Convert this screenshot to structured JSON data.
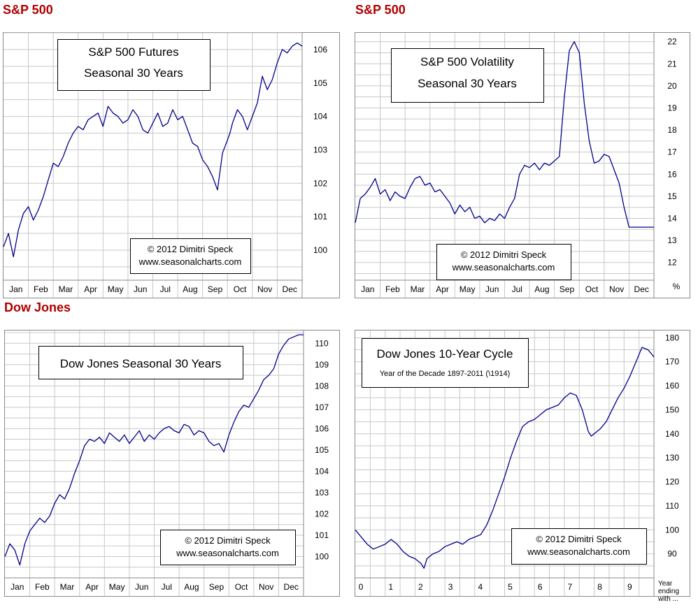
{
  "section_titles": {
    "sp500_left": "S&P 500",
    "sp500_right": "S&P 500",
    "dow": "Dow Jones"
  },
  "colors": {
    "title": "#b00000",
    "line": "#00008b",
    "grid": "#c8c8c8",
    "frame": "#888888"
  },
  "chart_data": [
    {
      "type": "line",
      "title": "S&P 500 Futures",
      "subtitle": "Seasonal 30 Years",
      "credit": [
        "© 2012  Dimitri Speck",
        "www.seasonalcharts.com"
      ],
      "x_tick_labels": [
        "Jan",
        "Feb",
        "Mar",
        "Apr",
        "May",
        "Jun",
        "Jul",
        "Aug",
        "Sep",
        "Oct",
        "Nov",
        "Dec"
      ],
      "y_ticks": [
        100,
        101,
        102,
        103,
        104,
        105,
        106
      ],
      "ylim": [
        99.1,
        106.5
      ],
      "unit_label": "",
      "grid": true,
      "series": [
        {
          "x": [
            0,
            0.2,
            0.4,
            0.6,
            0.8,
            1.0,
            1.2,
            1.4,
            1.6,
            1.8,
            2.0,
            2.2,
            2.4,
            2.6,
            2.8,
            3.0,
            3.2,
            3.4,
            3.6,
            3.8,
            4.0,
            4.2,
            4.4,
            4.6,
            4.8,
            5.0,
            5.2,
            5.4,
            5.6,
            5.8,
            6.0,
            6.2,
            6.4,
            6.6,
            6.8,
            7.0,
            7.2,
            7.4,
            7.6,
            7.8,
            8.0,
            8.2,
            8.4,
            8.6,
            8.8,
            9.0,
            9.1,
            9.2,
            9.3,
            9.4,
            9.5,
            9.6,
            9.8,
            10.0,
            10.2,
            10.4,
            10.6,
            10.8,
            11.0,
            11.2,
            11.4,
            11.6,
            11.8,
            12.0
          ],
          "y": [
            100.1,
            100.5,
            99.8,
            100.6,
            101.1,
            101.3,
            100.9,
            101.2,
            101.6,
            102.1,
            102.6,
            102.5,
            102.8,
            103.2,
            103.5,
            103.7,
            103.6,
            103.9,
            104.0,
            104.1,
            103.7,
            104.3,
            104.1,
            104.0,
            103.8,
            103.9,
            104.2,
            104.0,
            103.6,
            103.5,
            103.8,
            104.1,
            103.7,
            103.8,
            104.2,
            103.9,
            104.0,
            103.6,
            103.2,
            103.1,
            102.7,
            102.5,
            102.2,
            101.8,
            102.9,
            103.3,
            103.5,
            103.8,
            104.0,
            104.2,
            104.1,
            104.0,
            103.6,
            104.0,
            104.4,
            105.2,
            104.8,
            105.1,
            105.6,
            106.0,
            105.9,
            106.1,
            106.2,
            106.1
          ]
        }
      ]
    },
    {
      "type": "line",
      "title": "S&P 500 Volatility",
      "subtitle": "Seasonal 30 Years",
      "credit": [
        "© 2012  Dimitri Speck",
        "www.seasonalcharts.com"
      ],
      "x_tick_labels": [
        "Jan",
        "Feb",
        "Mar",
        "Apr",
        "May",
        "Jun",
        "Jul",
        "Aug",
        "Sep",
        "Oct",
        "Nov",
        "Dec"
      ],
      "y_ticks": [
        12,
        13,
        14,
        15,
        16,
        17,
        18,
        19,
        20,
        21,
        22
      ],
      "ylim": [
        11.2,
        22.4
      ],
      "unit_label": "%",
      "grid": true,
      "series": [
        {
          "x": [
            0,
            0.2,
            0.4,
            0.6,
            0.8,
            1.0,
            1.2,
            1.4,
            1.6,
            1.8,
            2.0,
            2.2,
            2.4,
            2.6,
            2.8,
            3.0,
            3.2,
            3.4,
            3.6,
            3.8,
            4.0,
            4.2,
            4.4,
            4.6,
            4.8,
            5.0,
            5.2,
            5.4,
            5.6,
            5.8,
            6.0,
            6.2,
            6.4,
            6.6,
            6.8,
            7.0,
            7.2,
            7.4,
            7.6,
            7.8,
            8.0,
            8.2,
            8.4,
            8.6,
            8.8,
            9.0,
            9.2,
            9.4,
            9.6,
            9.8,
            10.0,
            10.2,
            10.4,
            10.6,
            10.8,
            11.0,
            11.2,
            11.4,
            11.6,
            11.8,
            12.0
          ],
          "y": [
            13.8,
            14.9,
            15.1,
            15.4,
            15.8,
            15.1,
            15.3,
            14.8,
            15.2,
            15.0,
            14.9,
            15.4,
            15.8,
            15.9,
            15.5,
            15.6,
            15.2,
            15.3,
            15.0,
            14.7,
            14.2,
            14.6,
            14.3,
            14.5,
            14.0,
            14.1,
            13.8,
            14.0,
            13.9,
            14.2,
            14.0,
            14.5,
            14.9,
            16.0,
            16.4,
            16.3,
            16.5,
            16.2,
            16.5,
            16.4,
            16.6,
            16.8,
            19.5,
            21.6,
            22.0,
            21.5,
            19.2,
            17.5,
            16.5,
            16.6,
            16.9,
            16.8,
            16.2,
            15.6,
            14.5,
            13.6,
            13.6,
            13.6,
            13.6,
            13.6,
            13.6
          ]
        }
      ]
    },
    {
      "type": "line",
      "title": "Dow Jones Seasonal 30 Years",
      "subtitle": "",
      "credit": [
        "© 2012  Dimitri Speck",
        "www.seasonalcharts.com"
      ],
      "x_tick_labels": [
        "Jan",
        "Feb",
        "Mar",
        "Apr",
        "May",
        "Jun",
        "Jul",
        "Aug",
        "Sep",
        "Oct",
        "Nov",
        "Dec"
      ],
      "y_ticks": [
        100,
        101,
        102,
        103,
        104,
        105,
        106,
        107,
        108,
        109,
        110
      ],
      "ylim": [
        99.0,
        110.6
      ],
      "unit_label": "",
      "grid": true,
      "series": [
        {
          "x": [
            0,
            0.2,
            0.4,
            0.6,
            0.8,
            1.0,
            1.2,
            1.4,
            1.6,
            1.8,
            2.0,
            2.2,
            2.4,
            2.6,
            2.8,
            3.0,
            3.2,
            3.4,
            3.6,
            3.8,
            4.0,
            4.2,
            4.4,
            4.6,
            4.8,
            5.0,
            5.2,
            5.4,
            5.6,
            5.8,
            6.0,
            6.2,
            6.4,
            6.6,
            6.8,
            7.0,
            7.2,
            7.4,
            7.6,
            7.8,
            8.0,
            8.2,
            8.4,
            8.6,
            8.8,
            9.0,
            9.2,
            9.4,
            9.6,
            9.8,
            10.0,
            10.2,
            10.4,
            10.6,
            10.8,
            11.0,
            11.2,
            11.4,
            11.6,
            11.8,
            12.0
          ],
          "y": [
            100.0,
            100.6,
            100.3,
            99.6,
            100.6,
            101.2,
            101.5,
            101.8,
            101.6,
            101.9,
            102.5,
            102.9,
            102.7,
            103.2,
            103.9,
            104.5,
            105.2,
            105.5,
            105.4,
            105.6,
            105.3,
            105.8,
            105.6,
            105.4,
            105.7,
            105.3,
            105.6,
            105.9,
            105.4,
            105.7,
            105.5,
            105.8,
            106.0,
            106.1,
            105.9,
            105.8,
            106.2,
            106.1,
            105.7,
            105.9,
            105.8,
            105.4,
            105.2,
            105.3,
            104.9,
            105.7,
            106.3,
            106.8,
            107.1,
            107.0,
            107.4,
            107.8,
            108.3,
            108.5,
            108.8,
            109.5,
            109.9,
            110.2,
            110.3,
            110.4,
            110.4
          ]
        }
      ]
    },
    {
      "type": "line",
      "title": "Dow Jones 10-Year Cycle",
      "subtitle": "Year of the Decade  1897-2011 (\\1914)",
      "credit": [
        "© 2012  Dimitri Speck",
        "www.seasonalcharts.com"
      ],
      "x_tick_labels": [
        "0",
        "1",
        "2",
        "3",
        "4",
        "5",
        "6",
        "7",
        "8",
        "9"
      ],
      "x_axis_note": [
        "Year",
        "ending",
        "with ..."
      ],
      "y_ticks": [
        90,
        100,
        110,
        120,
        130,
        140,
        150,
        160,
        170,
        180
      ],
      "ylim": [
        80,
        183
      ],
      "unit_label": "",
      "grid": true,
      "series": [
        {
          "x": [
            0,
            0.2,
            0.4,
            0.6,
            0.8,
            1.0,
            1.2,
            1.4,
            1.6,
            1.8,
            2.0,
            2.2,
            2.3,
            2.4,
            2.6,
            2.8,
            3.0,
            3.2,
            3.4,
            3.6,
            3.8,
            4.0,
            4.2,
            4.4,
            4.6,
            4.8,
            5.0,
            5.2,
            5.4,
            5.6,
            5.8,
            6.0,
            6.2,
            6.4,
            6.6,
            6.8,
            7.0,
            7.2,
            7.4,
            7.6,
            7.8,
            7.9,
            8.0,
            8.2,
            8.4,
            8.6,
            8.8,
            9.0,
            9.2,
            9.4,
            9.6,
            9.8,
            10.0
          ],
          "y": [
            100,
            97,
            94,
            92,
            93,
            94,
            96,
            94,
            91,
            89,
            88,
            86,
            84,
            88,
            90,
            91,
            93,
            94,
            95,
            94,
            96,
            97,
            98,
            102,
            108,
            115,
            122,
            130,
            137,
            143,
            145,
            146,
            148,
            150,
            151,
            152,
            155,
            157,
            156,
            150,
            141,
            139,
            140,
            142,
            145,
            150,
            155,
            159,
            164,
            170,
            176,
            175,
            172
          ]
        }
      ]
    }
  ]
}
